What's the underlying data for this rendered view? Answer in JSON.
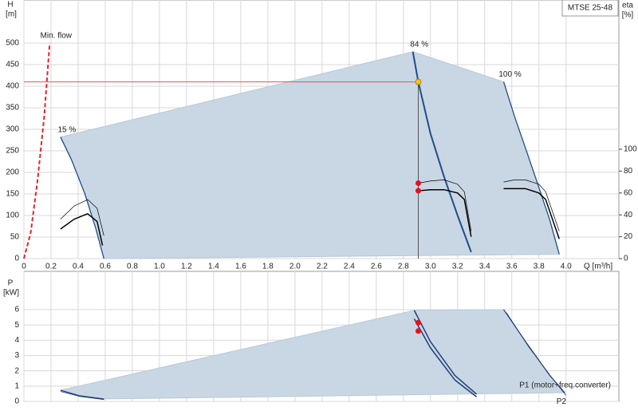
{
  "chart_data": [
    {
      "type": "line",
      "title": "MTSE 25-48",
      "y_label": "H",
      "y_unit": "[m]",
      "y2_label": "eta",
      "y2_unit": "[%]",
      "x_label": "Q [m³/h]",
      "xlim": [
        0,
        4.39
      ],
      "ylim": [
        0,
        600
      ],
      "y2lim": [
        0,
        236.5
      ],
      "xticks": [
        0,
        0.2,
        0.4,
        0.6,
        0.8,
        {
          "value": 1,
          "label": "1.0"
        },
        1.2,
        1.4,
        1.6,
        1.8,
        {
          "value": 2,
          "label": "2.0"
        },
        2.2,
        2.4,
        2.6,
        2.8,
        {
          "value": 3,
          "label": "3.0"
        },
        3.2,
        3.4,
        3.6,
        3.8,
        {
          "value": 4,
          "label": "4.0"
        }
      ],
      "yticks": [
        0,
        50,
        100,
        150,
        200,
        250,
        300,
        350,
        400,
        450,
        500
      ],
      "y2ticks": [
        0,
        20,
        40,
        60,
        80,
        100
      ],
      "grid": true,
      "range_fill": "#c9d7e4",
      "series": [
        {
          "name": "15 %",
          "color": "#1f4e8c",
          "linewidth": 1.3,
          "x": [
            0.27,
            0.35,
            0.45,
            0.53,
            0.59
          ],
          "values": [
            282,
            230,
            150,
            70,
            0
          ]
        },
        {
          "name": "84 %",
          "color": "#1f4e8c",
          "linewidth": 2,
          "x": [
            2.87,
            2.91,
            3.0,
            3.1,
            3.2,
            3.3
          ],
          "values": [
            480,
            410,
            290,
            190,
            100,
            15
          ]
        },
        {
          "name": "100 %",
          "color": "#1f4e8c",
          "linewidth": 1.3,
          "x": [
            3.54,
            3.62,
            3.71,
            3.8,
            3.88,
            3.95
          ],
          "values": [
            410,
            330,
            248,
            165,
            90,
            10
          ]
        },
        {
          "name": "Min. flow",
          "color": "#e8202a",
          "linewidth": 2,
          "dash": true,
          "x": [
            0,
            0.05,
            0.1,
            0.15,
            0.19
          ],
          "values": [
            0,
            60,
            180,
            330,
            500
          ]
        },
        {
          "color": "#000000",
          "axis": "y2",
          "linewidth": 0.7,
          "x": [
            0.27,
            0.37,
            0.47,
            0.54,
            0.59
          ],
          "values": [
            36,
            48,
            54,
            46,
            21
          ]
        },
        {
          "color": "#000000",
          "axis": "y2",
          "linewidth": 1.5,
          "x": [
            0.27,
            0.37,
            0.47,
            0.54,
            0.58
          ],
          "values": [
            27,
            36,
            41,
            34,
            12
          ]
        },
        {
          "color": "#000000",
          "axis": "y2",
          "linewidth": 0.7,
          "x": [
            2.91,
            3.0,
            3.1,
            3.2,
            3.25,
            3.3
          ],
          "values": [
            69,
            71,
            72,
            68,
            61,
            25
          ]
        },
        {
          "color": "#000000",
          "axis": "y2",
          "linewidth": 1.5,
          "x": [
            2.91,
            3.0,
            3.1,
            3.2,
            3.25,
            3.3
          ],
          "values": [
            62,
            63,
            63,
            60,
            54,
            20
          ]
        },
        {
          "color": "#000000",
          "axis": "y2",
          "linewidth": 0.7,
          "x": [
            3.54,
            3.62,
            3.7,
            3.8,
            3.85,
            3.95
          ],
          "values": [
            70,
            72,
            72,
            68,
            61,
            25
          ]
        },
        {
          "color": "#000000",
          "axis": "y2",
          "linewidth": 1.5,
          "x": [
            3.54,
            3.62,
            3.7,
            3.8,
            3.85,
            3.95
          ],
          "values": [
            64,
            64,
            64,
            60,
            54,
            18
          ]
        }
      ],
      "duty_point": {
        "x": 2.91,
        "y": 410,
        "color": "#f5c518",
        "line_color": "#e8505a"
      },
      "points": [
        {
          "x": 2.91,
          "y": 69,
          "axis": "y2",
          "color": "#e8101a"
        },
        {
          "x": 2.91,
          "y": 62,
          "axis": "y2",
          "color": "#e8101a"
        }
      ]
    },
    {
      "type": "line",
      "y_label": "P",
      "y_unit": "[kW]",
      "xlim": [
        0,
        4.39
      ],
      "ylim": [
        0,
        8.5
      ],
      "yticks": [
        0,
        1,
        2,
        3,
        4,
        5,
        6
      ],
      "grid": true,
      "range_fill": "#c9d7e4",
      "series": [
        {
          "color": "#1f3f7a",
          "linewidth": 1.3,
          "x": [
            0.27,
            0.41,
            0.59
          ],
          "values": [
            0.73,
            0.37,
            0.16
          ]
        },
        {
          "color": "#1f3f7a",
          "linewidth": 0.8,
          "x": [
            0.27,
            0.41,
            0.59
          ],
          "values": [
            0.65,
            0.33,
            0.12
          ]
        },
        {
          "color": "#1f3f7a",
          "linewidth": 1.5,
          "x": [
            2.88,
            3.0,
            3.18,
            3.34
          ],
          "values": [
            5.95,
            3.9,
            1.7,
            0.47
          ]
        },
        {
          "color": "#1f3f7a",
          "linewidth": 1.5,
          "x": [
            2.88,
            3.0,
            3.18,
            3.34
          ],
          "values": [
            5.4,
            3.5,
            1.4,
            0.3
          ]
        },
        {
          "name": "P1 (motor+freq.converter)",
          "color": "#1f3f7a",
          "linewidth": 1.2,
          "x": [
            3.54,
            3.71,
            3.88,
            3.99
          ],
          "values": [
            6.0,
            3.8,
            1.7,
            0.57
          ]
        },
        {
          "name": "P2",
          "color": "#1f3f7a",
          "linewidth": 0.8,
          "x": [
            3.56,
            3.73,
            3.9,
            4.0
          ],
          "values": [
            5.8,
            3.5,
            1.5,
            0.4
          ]
        }
      ],
      "points": [
        {
          "x": 2.91,
          "y": 5.15,
          "color": "#e8101a"
        },
        {
          "x": 2.91,
          "y": 4.6,
          "color": "#e8101a"
        }
      ]
    }
  ]
}
